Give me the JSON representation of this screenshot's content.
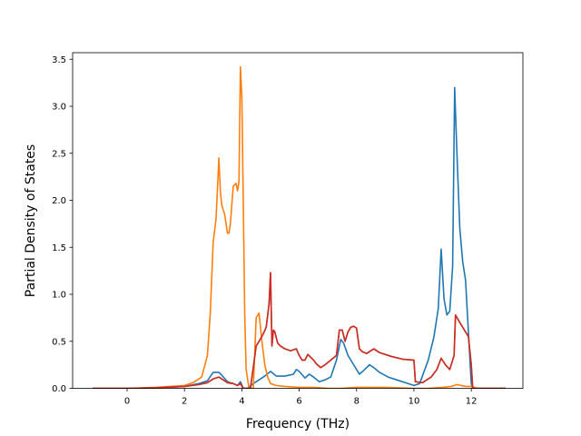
{
  "chart_data": {
    "type": "line",
    "title": "",
    "xlabel": "Frequency (THz)",
    "ylabel": "Partial Density of States",
    "xlim": [
      -1.9,
      13.8
    ],
    "ylim": [
      0.0,
      3.57
    ],
    "xticks": [
      0,
      2,
      4,
      6,
      8,
      10,
      12
    ],
    "yticks": [
      0.0,
      0.5,
      1.0,
      1.5,
      2.0,
      2.5,
      3.0,
      3.5
    ],
    "xtick_labels": [
      "0",
      "2",
      "4",
      "6",
      "8",
      "10",
      "12"
    ],
    "ytick_labels": [
      "0.0",
      "0.5",
      "1.0",
      "1.5",
      "2.0",
      "2.5",
      "3.0",
      "3.5"
    ],
    "grid": false,
    "legend": "none",
    "series": [
      {
        "color": "#1f77b4",
        "x": [
          -1.2,
          0,
          1,
          2,
          2.5,
          2.8,
          3.0,
          3.2,
          3.3,
          3.5,
          3.7,
          3.85,
          3.95,
          4.05,
          4.2,
          4.4,
          4.6,
          4.8,
          5.0,
          5.2,
          5.5,
          5.8,
          5.9,
          6.0,
          6.2,
          6.35,
          6.5,
          6.7,
          6.9,
          7.1,
          7.3,
          7.45,
          7.55,
          7.7,
          7.9,
          8.1,
          8.25,
          8.45,
          8.6,
          8.8,
          9.1,
          9.4,
          9.7,
          10.0,
          10.2,
          10.5,
          10.7,
          10.85,
          10.95,
          11.05,
          11.15,
          11.25,
          11.35,
          11.42,
          11.5,
          11.6,
          11.7,
          11.8,
          11.9,
          12.0,
          12.05,
          12.2,
          13.2
        ],
        "y": [
          0,
          0,
          0.005,
          0.02,
          0.05,
          0.08,
          0.17,
          0.17,
          0.14,
          0.07,
          0.05,
          0.03,
          0.07,
          0.0,
          0.0,
          0.05,
          0.09,
          0.13,
          0.18,
          0.13,
          0.13,
          0.15,
          0.2,
          0.18,
          0.11,
          0.15,
          0.12,
          0.07,
          0.09,
          0.12,
          0.3,
          0.52,
          0.48,
          0.35,
          0.25,
          0.15,
          0.19,
          0.25,
          0.22,
          0.17,
          0.12,
          0.09,
          0.06,
          0.03,
          0.05,
          0.3,
          0.55,
          0.85,
          1.48,
          0.95,
          0.78,
          0.82,
          1.3,
          3.2,
          2.5,
          1.7,
          1.35,
          1.15,
          0.6,
          0.05,
          0.0,
          0.0,
          0.0
        ]
      },
      {
        "color": "#ff7f0e",
        "x": [
          -1.2,
          0,
          1,
          1.5,
          2.0,
          2.3,
          2.6,
          2.8,
          2.9,
          3.0,
          3.1,
          3.2,
          3.25,
          3.3,
          3.4,
          3.5,
          3.55,
          3.6,
          3.7,
          3.8,
          3.85,
          3.9,
          3.95,
          4.0,
          4.05,
          4.1,
          4.15,
          4.25,
          4.4,
          4.5,
          4.6,
          4.7,
          4.8,
          4.9,
          5.0,
          5.2,
          5.5,
          6.0,
          6.5,
          7.0,
          7.5,
          8.0,
          9.0,
          10.0,
          10.5,
          11.0,
          11.3,
          11.5,
          11.8,
          12.0,
          12.2,
          13.2
        ],
        "y": [
          0,
          0,
          0.01,
          0.02,
          0.03,
          0.06,
          0.12,
          0.35,
          0.8,
          1.55,
          1.8,
          2.45,
          2.1,
          1.95,
          1.85,
          1.65,
          1.65,
          1.75,
          2.15,
          2.18,
          2.1,
          2.2,
          3.42,
          3.1,
          2.0,
          0.8,
          0.2,
          0.0,
          0.0,
          0.75,
          0.8,
          0.5,
          0.25,
          0.12,
          0.05,
          0.03,
          0.02,
          0.01,
          0.01,
          0.0,
          0.0,
          0.01,
          0.01,
          0.0,
          0.0,
          0.01,
          0.02,
          0.04,
          0.02,
          0.02,
          0.0,
          0.0
        ]
      },
      {
        "color": "#2ca02c",
        "x": [
          -1.2,
          0,
          1,
          2,
          2.5,
          2.8,
          3.0,
          3.2,
          3.3,
          3.5,
          3.7,
          3.85,
          3.95,
          4.05,
          4.3,
          4.5,
          4.6,
          4.75,
          4.85,
          4.95,
          5.0,
          5.05,
          5.1,
          5.15,
          5.25,
          5.35,
          5.5,
          5.7,
          5.9,
          6.0,
          6.1,
          6.2,
          6.3,
          6.5,
          6.6,
          6.75,
          6.9,
          7.1,
          7.3,
          7.4,
          7.5,
          7.6,
          7.7,
          7.8,
          7.9,
          8.0,
          8.1,
          8.2,
          8.35,
          8.5,
          8.6,
          8.8,
          9.2,
          9.6,
          10.0,
          10.05,
          10.3,
          10.6,
          10.8,
          10.95,
          11.1,
          11.25,
          11.4,
          11.45,
          11.6,
          11.8,
          11.9,
          12.0,
          12.05,
          12.2,
          13.2
        ],
        "y": [
          0,
          0,
          0.005,
          0.02,
          0.04,
          0.06,
          0.1,
          0.12,
          0.1,
          0.06,
          0.05,
          0.03,
          0.05,
          0.0,
          0.0,
          0.45,
          0.5,
          0.58,
          0.65,
          0.9,
          1.23,
          0.45,
          0.62,
          0.6,
          0.48,
          0.45,
          0.42,
          0.4,
          0.42,
          0.35,
          0.3,
          0.3,
          0.36,
          0.3,
          0.26,
          0.22,
          0.25,
          0.3,
          0.35,
          0.62,
          0.62,
          0.5,
          0.6,
          0.65,
          0.66,
          0.64,
          0.42,
          0.39,
          0.37,
          0.4,
          0.42,
          0.38,
          0.34,
          0.31,
          0.3,
          0.07,
          0.06,
          0.12,
          0.2,
          0.32,
          0.25,
          0.2,
          0.35,
          0.78,
          0.7,
          0.6,
          0.55,
          0.25,
          0.0,
          0.0,
          0.0
        ]
      },
      {
        "color": "#d62728",
        "x": [
          -1.2,
          0,
          1,
          2,
          2.5,
          2.8,
          3.0,
          3.2,
          3.3,
          3.5,
          3.7,
          3.85,
          3.95,
          4.05,
          4.3,
          4.5,
          4.6,
          4.75,
          4.85,
          4.95,
          5.0,
          5.05,
          5.1,
          5.15,
          5.25,
          5.35,
          5.5,
          5.7,
          5.9,
          6.0,
          6.1,
          6.2,
          6.3,
          6.5,
          6.6,
          6.75,
          6.9,
          7.1,
          7.3,
          7.4,
          7.5,
          7.6,
          7.7,
          7.8,
          7.9,
          8.0,
          8.1,
          8.2,
          8.35,
          8.5,
          8.6,
          8.8,
          9.2,
          9.6,
          10.0,
          10.05,
          10.3,
          10.6,
          10.8,
          10.95,
          11.1,
          11.25,
          11.4,
          11.45,
          11.6,
          11.8,
          11.9,
          12.0,
          12.05,
          12.2,
          13.2
        ],
        "y": [
          0,
          0,
          0.005,
          0.02,
          0.04,
          0.06,
          0.1,
          0.12,
          0.1,
          0.06,
          0.05,
          0.03,
          0.05,
          0.0,
          0.0,
          0.45,
          0.5,
          0.58,
          0.65,
          0.9,
          1.23,
          0.45,
          0.62,
          0.6,
          0.48,
          0.45,
          0.42,
          0.4,
          0.42,
          0.35,
          0.3,
          0.3,
          0.36,
          0.3,
          0.26,
          0.22,
          0.25,
          0.3,
          0.35,
          0.62,
          0.62,
          0.5,
          0.6,
          0.65,
          0.66,
          0.64,
          0.42,
          0.39,
          0.37,
          0.4,
          0.42,
          0.38,
          0.34,
          0.31,
          0.3,
          0.07,
          0.06,
          0.12,
          0.2,
          0.32,
          0.25,
          0.2,
          0.35,
          0.78,
          0.7,
          0.6,
          0.55,
          0.25,
          0.0,
          0.0,
          0.0
        ]
      }
    ]
  }
}
